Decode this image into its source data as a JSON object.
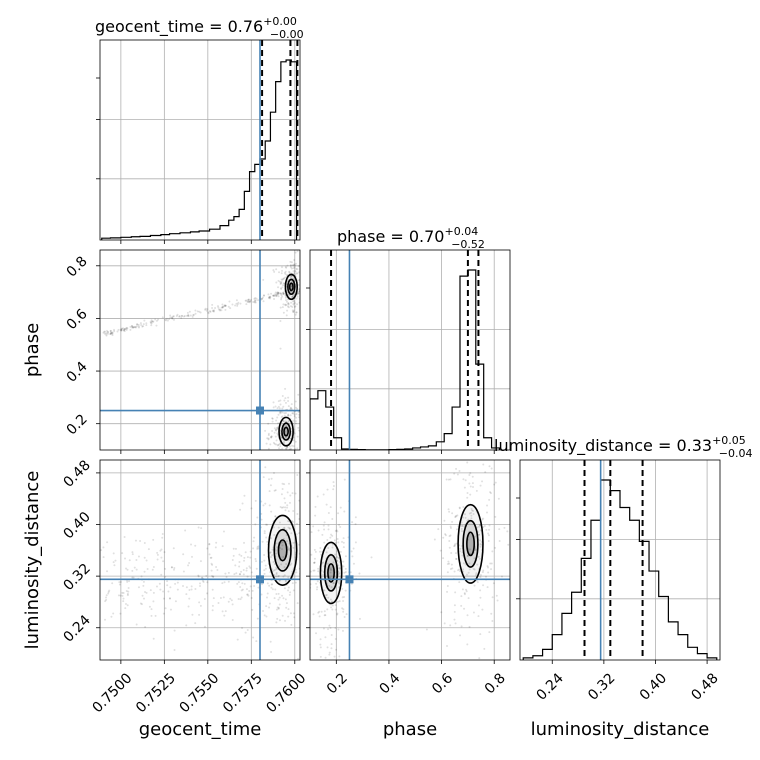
{
  "chart_data": {
    "type": "corner",
    "parameters": [
      "geocent_time",
      "phase",
      "luminosity_distance"
    ],
    "axis_labels": {
      "geocent_time": "geocent_time",
      "phase": "phase",
      "luminosity_distance": "luminosity_distance"
    },
    "ranges": {
      "geocent_time": [
        0.7488,
        0.7603
      ],
      "phase": [
        0.1,
        0.86
      ],
      "luminosity_distance": [
        0.19,
        0.5
      ]
    },
    "ticks": {
      "geocent_time": [
        "0.7500",
        "0.7525",
        "0.7550",
        "0.7575",
        "0.7600"
      ],
      "phase": [
        "0.2",
        "0.4",
        "0.6",
        "0.8"
      ],
      "luminosity_distance": [
        "0.24",
        "0.32",
        "0.40",
        "0.48"
      ]
    },
    "truths": {
      "geocent_time": 0.758,
      "phase": 0.25,
      "luminosity_distance": 0.315
    },
    "truth_color": "#4682b4",
    "titles": {
      "geocent_time": {
        "name": "geocent_time",
        "median": "0.76",
        "plus": "+0.00",
        "minus": "−0.00"
      },
      "phase": {
        "name": "phase",
        "median": "0.70",
        "plus": "+0.04",
        "minus": "−0.52"
      },
      "luminosity_distance": {
        "name": "luminosity_distance",
        "median": "0.33",
        "plus": "+0.05",
        "minus": "−0.04"
      }
    },
    "quantile_lines": {
      "geocent_time": [
        0.75812,
        0.75975,
        0.76015
      ],
      "phase": [
        0.18,
        0.7,
        0.74
      ],
      "luminosity_distance": [
        0.29,
        0.33,
        0.38
      ]
    },
    "histograms": {
      "geocent_time": {
        "edges": [
          0.7489,
          0.7494,
          0.75,
          0.7506,
          0.7511,
          0.7517,
          0.7523,
          0.7528,
          0.7534,
          0.754,
          0.7545,
          0.7551,
          0.7557,
          0.7562,
          0.7565,
          0.7568,
          0.7571,
          0.7574,
          0.7577,
          0.758,
          0.7583,
          0.7586,
          0.7589,
          0.7592,
          0.7595,
          0.7598,
          0.7601
        ],
        "counts": [
          0.01,
          0.012,
          0.015,
          0.018,
          0.02,
          0.025,
          0.03,
          0.035,
          0.04,
          0.045,
          0.05,
          0.06,
          0.08,
          0.11,
          0.13,
          0.17,
          0.27,
          0.38,
          0.42,
          0.45,
          0.55,
          0.71,
          0.88,
          0.99,
          1.0,
          0.99
        ]
      },
      "phase": {
        "edges": [
          0.1,
          0.13,
          0.16,
          0.19,
          0.22,
          0.25,
          0.28,
          0.31,
          0.34,
          0.37,
          0.4,
          0.43,
          0.46,
          0.49,
          0.52,
          0.55,
          0.58,
          0.61,
          0.64,
          0.67,
          0.7,
          0.73,
          0.76,
          0.79,
          0.82
        ],
        "counts": [
          0.25,
          0.29,
          0.21,
          0.06,
          0.005,
          0.003,
          0.002,
          0.001,
          0.001,
          0.001,
          0.002,
          0.003,
          0.005,
          0.01,
          0.015,
          0.02,
          0.04,
          0.08,
          0.21,
          0.85,
          0.88,
          0.42,
          0.06,
          0.01
        ]
      },
      "luminosity_distance": {
        "edges": [
          0.195,
          0.21,
          0.225,
          0.24,
          0.255,
          0.27,
          0.285,
          0.3,
          0.315,
          0.33,
          0.345,
          0.36,
          0.375,
          0.39,
          0.405,
          0.42,
          0.435,
          0.45,
          0.465,
          0.48,
          0.495
        ],
        "counts": [
          0.01,
          0.02,
          0.05,
          0.12,
          0.22,
          0.32,
          0.48,
          0.66,
          0.85,
          0.8,
          0.72,
          0.66,
          0.56,
          0.42,
          0.3,
          0.18,
          0.12,
          0.06,
          0.03,
          0.01
        ]
      }
    },
    "joint_modes": [
      {
        "x": "geocent_time",
        "y": "phase",
        "ellipses": [
          {
            "cx": 0.7598,
            "cy": 0.72,
            "sx": 0.00025,
            "sy": 0.035
          },
          {
            "cx": 0.7595,
            "cy": 0.17,
            "sx": 0.0003,
            "sy": 0.04
          }
        ],
        "streak": [
          [
            0.749,
            0.54
          ],
          [
            0.752,
            0.59
          ],
          [
            0.755,
            0.63
          ],
          [
            0.7575,
            0.665
          ],
          [
            0.7595,
            0.7
          ]
        ]
      },
      {
        "x": "geocent_time",
        "y": "luminosity_distance",
        "ellipses": [
          {
            "cx": 0.7593,
            "cy": 0.36,
            "sx": 0.0006,
            "sy": 0.04
          }
        ],
        "streak": []
      },
      {
        "x": "phase",
        "y": "luminosity_distance",
        "ellipses": [
          {
            "cx": 0.18,
            "cy": 0.325,
            "sx": 0.03,
            "sy": 0.035
          },
          {
            "cx": 0.71,
            "cy": 0.37,
            "sx": 0.035,
            "sy": 0.045
          }
        ],
        "streak": []
      }
    ]
  }
}
